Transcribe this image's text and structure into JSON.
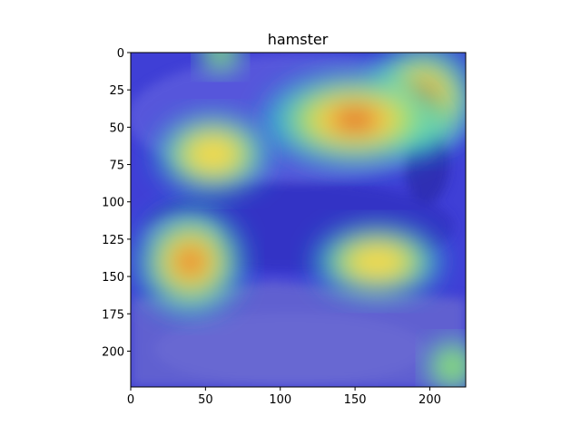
{
  "figure": {
    "title": "hamster"
  },
  "chart_data": {
    "type": "heatmap",
    "title": "hamster",
    "xlabel": "",
    "ylabel": "",
    "xlim": [
      0,
      224
    ],
    "ylim": [
      224,
      0
    ],
    "x_ticks": [
      0,
      50,
      100,
      150,
      200
    ],
    "y_ticks": [
      0,
      25,
      50,
      75,
      100,
      125,
      150,
      175,
      200
    ],
    "colormap": "jet",
    "overlay": "heatmap over photo",
    "hotspots": [
      {
        "x": 195,
        "y": 30,
        "intensity": 1.0
      },
      {
        "x": 150,
        "y": 45,
        "intensity": 0.9
      },
      {
        "x": 40,
        "y": 140,
        "intensity": 1.0
      },
      {
        "x": 55,
        "y": 68,
        "intensity": 0.75
      },
      {
        "x": 165,
        "y": 140,
        "intensity": 0.7
      },
      {
        "x": 60,
        "y": 0,
        "intensity": 0.4
      },
      {
        "x": 215,
        "y": 210,
        "intensity": 0.5
      }
    ]
  }
}
